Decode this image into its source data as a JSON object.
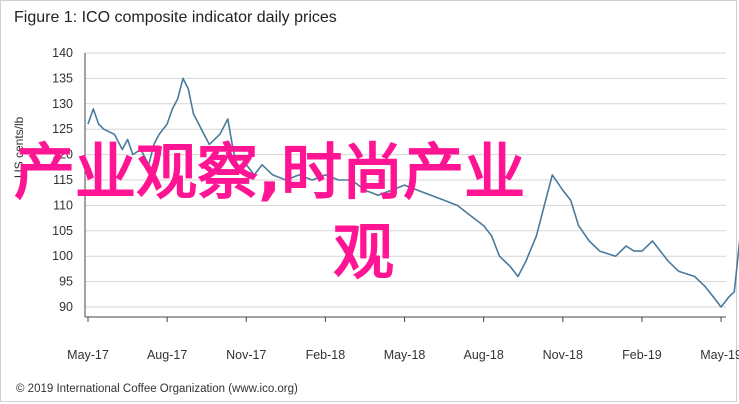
{
  "title": "Figure 1: ICO composite indicator daily prices",
  "footer": "© 2019 International Coffee Organization (www.ico.org)",
  "overlay": {
    "line1": "产业观察,时尚产业",
    "line2": "观"
  },
  "colors": {
    "series": "#4a7a9c",
    "overlay": "#ff1493",
    "grid": "#d6d6d6",
    "axis": "#444444"
  },
  "chart_data": {
    "type": "line",
    "title": "Figure 1: ICO composite indicator daily prices",
    "ylabel": "US cents/lb",
    "xlabel": "",
    "ylim": [
      90,
      140
    ],
    "yticks": [
      90,
      95,
      100,
      105,
      110,
      115,
      120,
      125,
      130,
      135,
      140
    ],
    "xticks": [
      "May-17",
      "Aug-17",
      "Nov-17",
      "Feb-18",
      "May-18",
      "Aug-18",
      "Nov-18",
      "Feb-19",
      "May-19"
    ],
    "grid": {
      "y": true,
      "x": false
    },
    "series": [
      {
        "values": [
          [
            "May-17",
            126
          ],
          [
            "May-17+0.2",
            129
          ],
          [
            "May-17+0.4",
            126
          ],
          [
            "May-17+0.6",
            125
          ],
          [
            "Jun-17",
            124
          ],
          [
            "Jun-17+0.3",
            121
          ],
          [
            "Jun-17+0.5",
            123
          ],
          [
            "Jun-17+0.7",
            120
          ],
          [
            "Jul-17",
            121
          ],
          [
            "Jul-17+0.3",
            118
          ],
          [
            "Jul-17+0.5",
            122
          ],
          [
            "Jul-17+0.7",
            124
          ],
          [
            "Aug-17",
            126
          ],
          [
            "Aug-17+0.2",
            129
          ],
          [
            "Aug-17+0.4",
            131
          ],
          [
            "Aug-17+0.6",
            135
          ],
          [
            "Aug-17+0.8",
            133
          ],
          [
            "Sep-17",
            128
          ],
          [
            "Sep-17+0.3",
            125
          ],
          [
            "Sep-17+0.6",
            122
          ],
          [
            "Oct-17",
            124
          ],
          [
            "Oct-17+0.3",
            127
          ],
          [
            "Oct-17+0.5",
            121
          ],
          [
            "Oct-17+0.7",
            117
          ],
          [
            "Nov-17",
            118
          ],
          [
            "Nov-17+0.3",
            116
          ],
          [
            "Nov-17+0.6",
            118
          ],
          [
            "Dec-17",
            116
          ],
          [
            "Dec-17+0.5",
            115
          ],
          [
            "Jan-18",
            116
          ],
          [
            "Jan-18+0.5",
            115
          ],
          [
            "Feb-18",
            116
          ],
          [
            "Feb-18+0.5",
            115
          ],
          [
            "Mar-18",
            115
          ],
          [
            "Mar-18+0.5",
            113
          ],
          [
            "Apr-18",
            112
          ],
          [
            "Apr-18+0.5",
            113
          ],
          [
            "May-18",
            114
          ],
          [
            "May-18+0.5",
            113
          ],
          [
            "Jun-18",
            112
          ],
          [
            "Jun-18+0.5",
            111
          ],
          [
            "Jul-18",
            110
          ],
          [
            "Jul-18+0.5",
            108
          ],
          [
            "Aug-18",
            106
          ],
          [
            "Aug-18+0.3",
            104
          ],
          [
            "Aug-18+0.6",
            100
          ],
          [
            "Sep-18",
            98
          ],
          [
            "Sep-18+0.3",
            96
          ],
          [
            "Sep-18+0.6",
            99
          ],
          [
            "Oct-18",
            104
          ],
          [
            "Oct-18+0.3",
            110
          ],
          [
            "Oct-18+0.6",
            116
          ],
          [
            "Nov-18",
            113
          ],
          [
            "Nov-18+0.3",
            111
          ],
          [
            "Nov-18+0.6",
            106
          ],
          [
            "Dec-18",
            103
          ],
          [
            "Dec-18+0.4",
            101
          ],
          [
            "Jan-19",
            100
          ],
          [
            "Jan-19+0.4",
            102
          ],
          [
            "Jan-19+0.7",
            101
          ],
          [
            "Feb-19",
            101
          ],
          [
            "Feb-19+0.4",
            103
          ],
          [
            "Feb-19+0.7",
            101
          ],
          [
            "Mar-19",
            99
          ],
          [
            "Mar-19+0.4",
            97
          ],
          [
            "Apr-19",
            96
          ],
          [
            "Apr-19+0.4",
            94
          ],
          [
            "Apr-19+0.7",
            92
          ],
          [
            "May-19",
            90
          ],
          [
            "May-19+0.3",
            92
          ],
          [
            "May-19+0.5",
            93
          ],
          [
            "May-19+0.7",
            103
          ]
        ]
      }
    ]
  }
}
